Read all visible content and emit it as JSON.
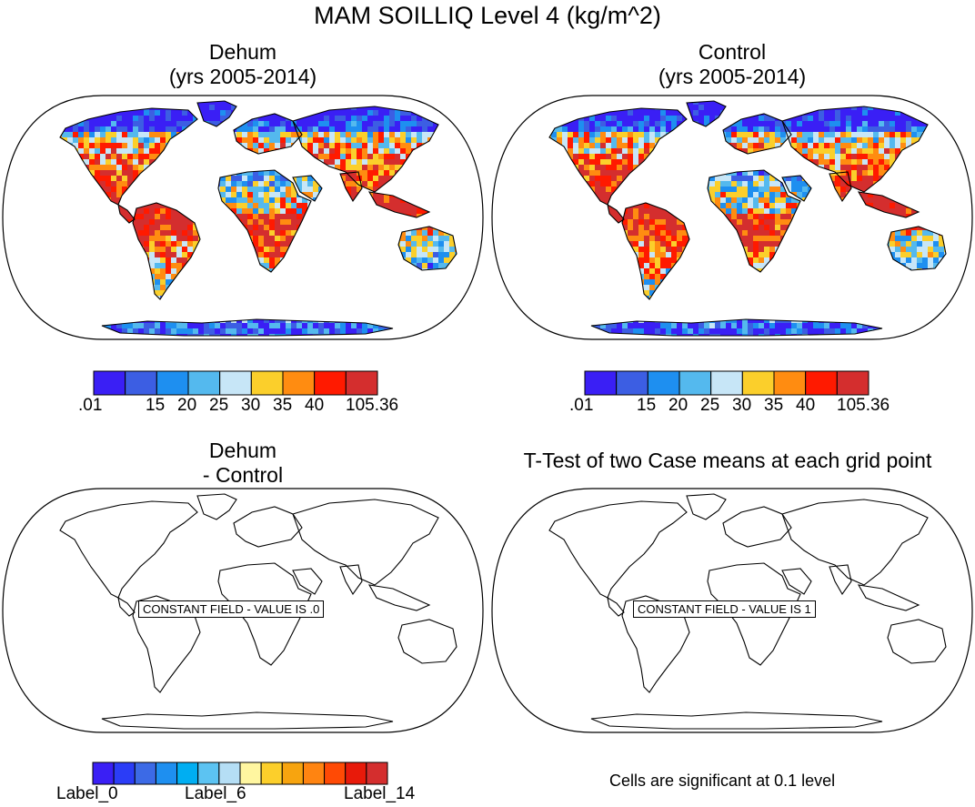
{
  "title": "MAM SOILLIQ Level 4 (kg/m^2)",
  "panels": [
    {
      "id": "dehum",
      "title_line1": "Dehum",
      "title_line2": "(yrs 2005-2014)",
      "content": "filled"
    },
    {
      "id": "control",
      "title_line1": "Control",
      "title_line2": "(yrs 2005-2014)",
      "content": "filled"
    },
    {
      "id": "diff",
      "title_line1": "Dehum",
      "title_line2": "- Control",
      "content": "constant",
      "message": "CONSTANT FIELD - VALUE IS .0"
    },
    {
      "id": "ttest",
      "title_line1": "T-Test of two Case means at each grid point",
      "title_line2": "",
      "content": "constant",
      "message": "CONSTANT FIELD - VALUE IS 1"
    }
  ],
  "colorbar_top": {
    "colors": [
      "#3a1ff5",
      "#3c5ee3",
      "#1e8ff0",
      "#54b9ee",
      "#c7e6f7",
      "#fbcf2b",
      "#ff8c11",
      "#ff1a00",
      "#d42e2e"
    ],
    "labels": [
      ".01",
      "15",
      "20",
      "25",
      "30",
      "35",
      "40",
      "105.36"
    ]
  },
  "colorbar_bottom": {
    "colors": [
      "#3a1ff5",
      "#2b3df7",
      "#3c6ae6",
      "#1e8ff0",
      "#00aef2",
      "#5cc3f2",
      "#b5def5",
      "#fff6a0",
      "#fccf2b",
      "#f7a40f",
      "#ff8411",
      "#ff4a05",
      "#e81a0a",
      "#d42e2e"
    ],
    "labels": [
      "Label_0",
      "Label_6",
      "Label_14"
    ]
  },
  "significance_note": "Cells are significant at 0.1 level"
}
